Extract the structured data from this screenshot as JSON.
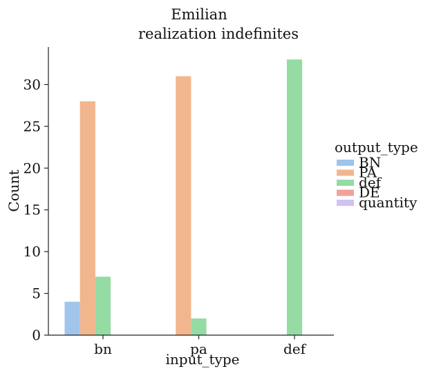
{
  "chart_data": {
    "type": "bar",
    "title": [
      "Emilian",
      "realization indefinites"
    ],
    "xlabel": "input_type",
    "ylabel": "Count",
    "categories": [
      "bn",
      "pa",
      "def"
    ],
    "yticks": [
      0,
      5,
      10,
      15,
      20,
      25,
      30
    ],
    "ylim": [
      0,
      34.5
    ],
    "grid": false,
    "legend": {
      "title": "output_type",
      "placement": "right"
    },
    "series": [
      {
        "name": "BN",
        "color": "#a1c4ea",
        "values": [
          4,
          0,
          0
        ]
      },
      {
        "name": "PA",
        "color": "#f2b68d",
        "values": [
          28,
          31,
          0
        ]
      },
      {
        "name": "def",
        "color": "#95dba4",
        "values": [
          7,
          2,
          33
        ]
      },
      {
        "name": "DE",
        "color": "#f2a19a",
        "values": [
          0,
          0,
          0
        ]
      },
      {
        "name": "quantity",
        "color": "#d2c2f2",
        "values": [
          0,
          0,
          0
        ]
      }
    ]
  }
}
